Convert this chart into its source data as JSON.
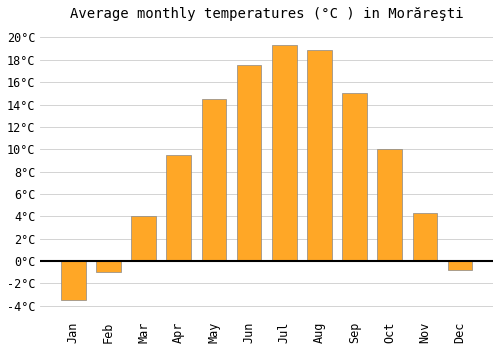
{
  "title": "Average monthly temperatures (°C ) in Morăreşti",
  "months": [
    "Jan",
    "Feb",
    "Mar",
    "Apr",
    "May",
    "Jun",
    "Jul",
    "Aug",
    "Sep",
    "Oct",
    "Nov",
    "Dec"
  ],
  "values": [
    -3.5,
    -1.0,
    4.0,
    9.5,
    14.5,
    17.5,
    19.3,
    18.9,
    15.0,
    10.0,
    4.3,
    -0.8
  ],
  "bar_color": "#FFA726",
  "bar_edge_color": "#888888",
  "background_color": "#FFFFFF",
  "grid_color": "#CCCCCC",
  "ylim": [
    -5,
    21
  ],
  "ytick_min": -4,
  "ytick_max": 20,
  "ytick_step": 2,
  "title_fontsize": 10,
  "tick_fontsize": 8.5,
  "figsize": [
    5.0,
    3.5
  ],
  "dpi": 100
}
